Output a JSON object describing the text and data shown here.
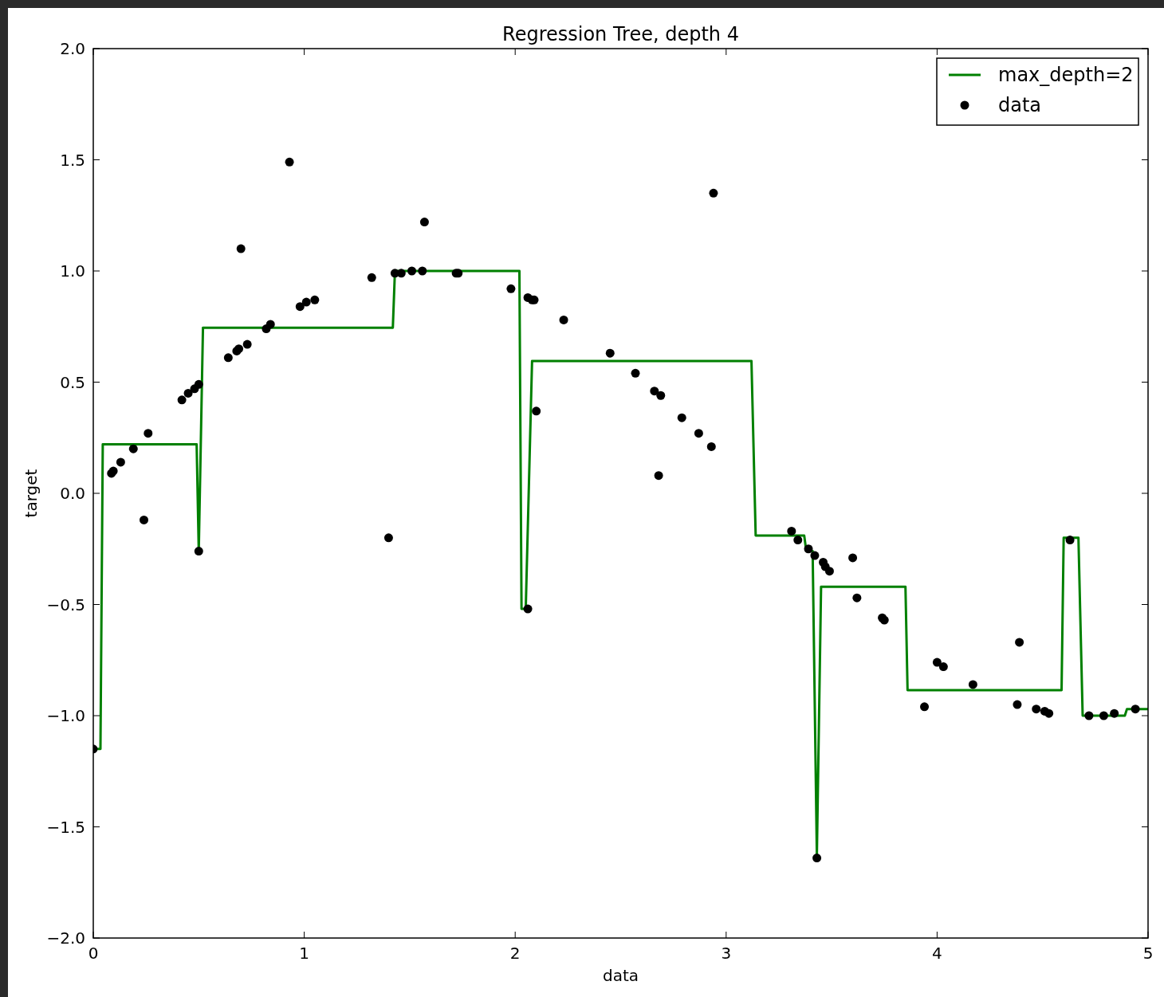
{
  "chart_data": {
    "type": "scatter",
    "title": "Regression Tree, depth 4",
    "xlabel": "data",
    "ylabel": "target",
    "xlim": [
      0,
      5
    ],
    "xticks": [
      0,
      1,
      2,
      3,
      4,
      5
    ],
    "ylim": [
      -2,
      2
    ],
    "yticks": [
      {
        "value": -2,
        "label": "−2.0"
      },
      {
        "value": -1.5,
        "label": "−1.5"
      },
      {
        "value": -1,
        "label": "−1.0"
      },
      {
        "value": -0.5,
        "label": "−0.5"
      },
      {
        "value": 0,
        "label": "0.0"
      },
      {
        "value": 0.5,
        "label": "0.5"
      },
      {
        "value": 1,
        "label": "1.0"
      },
      {
        "value": 1.5,
        "label": "1.5"
      },
      {
        "value": 2,
        "label": "2.0"
      }
    ],
    "grid": false,
    "legend": "top right",
    "series": [
      {
        "name": "max_depth=2",
        "type": "line",
        "color": "#008000",
        "marker": "none",
        "line_style": "solid",
        "x": [
          0,
          0.034,
          0.045,
          0.49,
          0.5,
          0.52,
          1.42,
          1.43,
          2.02,
          2.03,
          2.05,
          2.08,
          3.12,
          3.14,
          3.37,
          3.38,
          3.41,
          3.43,
          3.45,
          3.85,
          3.86,
          4.59,
          4.6,
          4.67,
          4.69,
          4.89,
          4.9,
          5.0
        ],
        "values": [
          -1.15,
          -1.15,
          0.22,
          0.22,
          -0.26,
          0.745,
          0.745,
          1.0,
          1.0,
          -0.52,
          -0.52,
          0.595,
          0.595,
          -0.19,
          -0.19,
          -0.26,
          -0.26,
          -1.63,
          -0.42,
          -0.42,
          -0.885,
          -0.885,
          -0.2,
          -0.2,
          -1.0,
          -1.0,
          -0.97,
          -0.97
        ]
      },
      {
        "name": "data",
        "color": "#000000",
        "marker": "circle",
        "x": [
          0,
          0.086,
          0.095,
          0.13,
          0.19,
          0.24,
          0.26,
          0.42,
          0.45,
          0.48,
          0.5,
          0.5,
          0.64,
          0.68,
          0.69,
          0.73,
          0.7,
          0.82,
          0.84,
          0.93,
          0.98,
          1.01,
          1.05,
          1.32,
          1.4,
          1.43,
          1.46,
          1.51,
          1.56,
          1.57,
          1.72,
          1.73,
          1.98,
          2.06,
          2.08,
          2.09,
          2.06,
          2.1,
          2.23,
          2.45,
          2.57,
          2.66,
          2.69,
          2.68,
          2.79,
          2.87,
          2.93,
          2.94,
          3.31,
          3.34,
          3.39,
          3.42,
          3.46,
          3.47,
          3.49,
          3.43,
          3.6,
          3.62,
          3.74,
          3.75,
          3.94,
          4.0,
          4.03,
          4.17,
          4.38,
          4.39,
          4.47,
          4.51,
          4.53,
          4.63,
          4.72,
          4.79,
          4.84,
          4.94
        ],
        "values": [
          -1.15,
          0.09,
          0.1,
          0.14,
          0.2,
          -0.12,
          0.27,
          0.42,
          0.45,
          0.47,
          0.49,
          -0.26,
          0.61,
          0.64,
          0.65,
          0.67,
          1.1,
          0.74,
          0.76,
          1.49,
          0.84,
          0.86,
          0.87,
          0.97,
          -0.2,
          0.99,
          0.99,
          1.0,
          1.0,
          1.22,
          0.99,
          0.99,
          0.92,
          0.88,
          0.87,
          0.87,
          -0.52,
          0.37,
          0.78,
          0.63,
          0.54,
          0.46,
          0.44,
          0.08,
          0.34,
          0.27,
          0.21,
          1.35,
          -0.17,
          -0.21,
          -0.25,
          -0.28,
          -0.31,
          -0.33,
          -0.35,
          -1.64,
          -0.29,
          -0.47,
          -0.56,
          -0.57,
          -0.96,
          -0.76,
          -0.78,
          -0.86,
          -0.95,
          -0.67,
          -0.97,
          -0.98,
          -0.99,
          -0.21,
          -1.0,
          -1.0,
          -0.99,
          -0.97
        ]
      }
    ]
  }
}
